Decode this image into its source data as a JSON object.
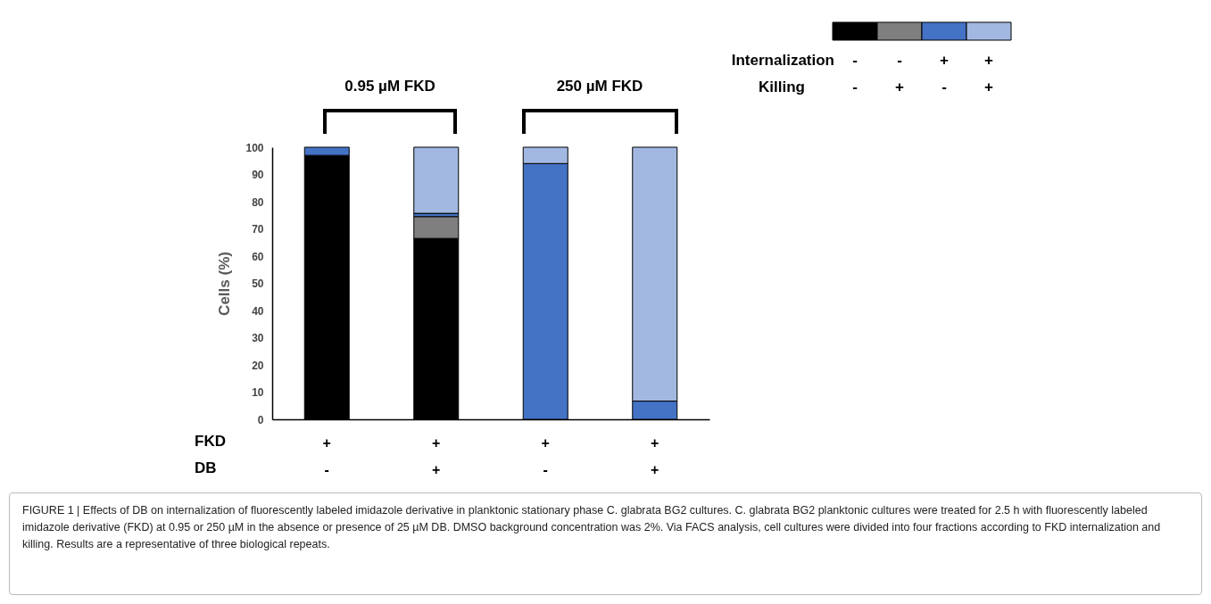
{
  "chart_data": {
    "type": "bar",
    "stacked": true,
    "ylabel": "Cells (%)",
    "categories": [
      "+\n-",
      "+\n+",
      "+\n-",
      "+\n+"
    ],
    "ylim": [
      0,
      100
    ],
    "yticks": [
      0,
      10,
      20,
      30,
      40,
      50,
      60,
      70,
      80,
      90,
      100
    ],
    "grid": false,
    "legend": "top right",
    "series": [
      {
        "name": "-\n-",
        "color": "#000000",
        "values": [
          97,
          66.5,
          null,
          null
        ]
      },
      {
        "name": "-\n+",
        "color": "#7f7f7f",
        "values": [
          null,
          8,
          null,
          null
        ]
      },
      {
        "name": "+\n-",
        "color": "#4472c4",
        "values": [
          3,
          1.2,
          94,
          6.7
        ]
      },
      {
        "name": "+\n+",
        "color": "#a2b8e1",
        "values": [
          null,
          24.3,
          6,
          93.3
        ]
      }
    ],
    "annotations": [
      "0.95 µM FKD",
      "250 µM FKD",
      "Internalization",
      "Killing",
      "FKD",
      "DB",
      "FIGURE 1 | Effects of DB on internalization of fluorescently labeled imidazole derivative in planktonic stationary phase C. glabrata BG2 cultures. C. glabrata BG2 planktonic cultures were treated for 2.5 h with fluorescently labeled imidazole derivative (FKD) at 0.95 or 250 µM in the absence or presence of 25 µM DB. DMSO background concentration was 2%. Via FACS analysis, cell cultures were divided into four fractions according to FKD internalization and killing. Results are a representative of three biological repeats."
    ]
  }
}
